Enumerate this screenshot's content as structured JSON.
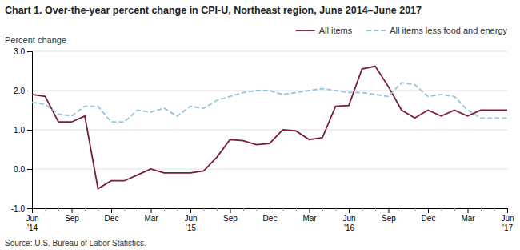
{
  "chart_data": {
    "type": "line",
    "title": "Chart 1. Over-the-year percent change in CPI-U, Northeast region, June 2014–June 2017",
    "y_label": "Percent change",
    "annotations": [
      "Source: U.S. Bureau of Labor Statistics."
    ],
    "categories": [
      "Jun\n'14",
      null,
      null,
      "Sep",
      null,
      null,
      "Dec",
      null,
      null,
      "Mar",
      null,
      null,
      "Jun\n'15",
      null,
      null,
      "Sep",
      null,
      null,
      "Dec",
      null,
      null,
      "Mar",
      null,
      null,
      "Jun\n'16",
      null,
      null,
      "Sep",
      null,
      null,
      "Dec",
      null,
      null,
      "Mar",
      null,
      null,
      "Jun\n'17"
    ],
    "series": [
      {
        "name": "All items",
        "color": "#7B1B3B",
        "line_style": "solid",
        "values": [
          1.9,
          1.85,
          1.2,
          1.2,
          1.35,
          -0.5,
          -0.3,
          -0.3,
          -0.15,
          0.0,
          -0.1,
          -0.1,
          -0.1,
          -0.05,
          0.3,
          0.75,
          0.72,
          0.62,
          0.65,
          1.0,
          0.97,
          0.75,
          0.8,
          1.6,
          1.62,
          2.55,
          2.62,
          2.1,
          1.5,
          1.3,
          1.5,
          1.35,
          1.5,
          1.35,
          1.5,
          1.5,
          1.5
        ]
      },
      {
        "name": "All items less food and energy",
        "color": "#92C5DE",
        "line_style": "dashed",
        "values": [
          1.7,
          1.65,
          1.4,
          1.35,
          1.6,
          1.6,
          1.2,
          1.2,
          1.5,
          1.45,
          1.55,
          1.35,
          1.6,
          1.55,
          1.75,
          1.85,
          1.95,
          2.0,
          2.0,
          1.9,
          1.95,
          2.0,
          2.05,
          2.0,
          1.95,
          1.95,
          1.9,
          1.85,
          2.2,
          2.15,
          1.85,
          1.9,
          1.85,
          1.5,
          1.3,
          1.3,
          1.3
        ]
      }
    ],
    "ylim": [
      -1.0,
      3.0
    ],
    "yticks": [
      {
        "value": -1.0,
        "label": "-1.0"
      },
      {
        "value": 0.0,
        "label": "0.0"
      },
      {
        "value": 1.0,
        "label": "1.0"
      },
      {
        "value": 2.0,
        "label": "2.0"
      },
      {
        "value": 3.0,
        "label": "3.0"
      }
    ],
    "grid": true,
    "legend": "upper right"
  }
}
